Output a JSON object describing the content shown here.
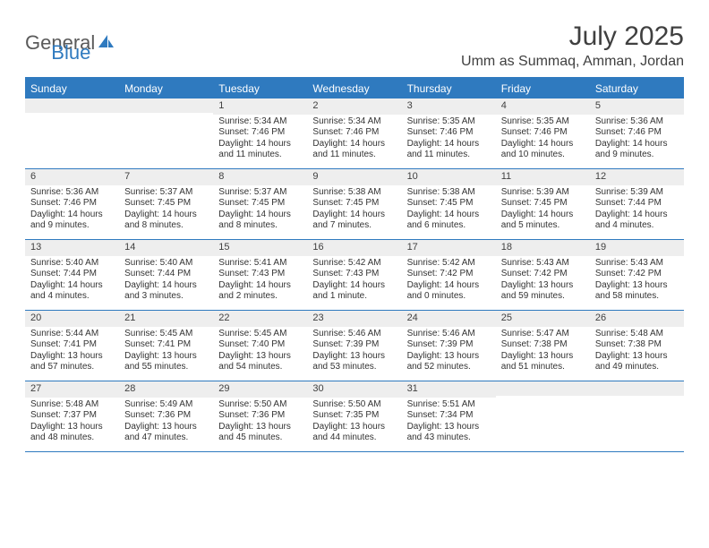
{
  "logo": {
    "general": "General",
    "blue": "Blue"
  },
  "title": "July 2025",
  "location": "Umm as Summaq, Amman, Jordan",
  "colors": {
    "accent": "#2f7abf",
    "head_text": "#ffffff",
    "daynum_bg": "#eeeeee",
    "body_text": "#333333",
    "title_text": "#404040"
  },
  "dayHeaders": [
    "Sunday",
    "Monday",
    "Tuesday",
    "Wednesday",
    "Thursday",
    "Friday",
    "Saturday"
  ],
  "weeks": [
    [
      {
        "n": "",
        "sr": "",
        "ss": "",
        "dl": ""
      },
      {
        "n": "",
        "sr": "",
        "ss": "",
        "dl": ""
      },
      {
        "n": "1",
        "sr": "Sunrise: 5:34 AM",
        "ss": "Sunset: 7:46 PM",
        "dl": "Daylight: 14 hours and 11 minutes."
      },
      {
        "n": "2",
        "sr": "Sunrise: 5:34 AM",
        "ss": "Sunset: 7:46 PM",
        "dl": "Daylight: 14 hours and 11 minutes."
      },
      {
        "n": "3",
        "sr": "Sunrise: 5:35 AM",
        "ss": "Sunset: 7:46 PM",
        "dl": "Daylight: 14 hours and 11 minutes."
      },
      {
        "n": "4",
        "sr": "Sunrise: 5:35 AM",
        "ss": "Sunset: 7:46 PM",
        "dl": "Daylight: 14 hours and 10 minutes."
      },
      {
        "n": "5",
        "sr": "Sunrise: 5:36 AM",
        "ss": "Sunset: 7:46 PM",
        "dl": "Daylight: 14 hours and 9 minutes."
      }
    ],
    [
      {
        "n": "6",
        "sr": "Sunrise: 5:36 AM",
        "ss": "Sunset: 7:46 PM",
        "dl": "Daylight: 14 hours and 9 minutes."
      },
      {
        "n": "7",
        "sr": "Sunrise: 5:37 AM",
        "ss": "Sunset: 7:45 PM",
        "dl": "Daylight: 14 hours and 8 minutes."
      },
      {
        "n": "8",
        "sr": "Sunrise: 5:37 AM",
        "ss": "Sunset: 7:45 PM",
        "dl": "Daylight: 14 hours and 8 minutes."
      },
      {
        "n": "9",
        "sr": "Sunrise: 5:38 AM",
        "ss": "Sunset: 7:45 PM",
        "dl": "Daylight: 14 hours and 7 minutes."
      },
      {
        "n": "10",
        "sr": "Sunrise: 5:38 AM",
        "ss": "Sunset: 7:45 PM",
        "dl": "Daylight: 14 hours and 6 minutes."
      },
      {
        "n": "11",
        "sr": "Sunrise: 5:39 AM",
        "ss": "Sunset: 7:45 PM",
        "dl": "Daylight: 14 hours and 5 minutes."
      },
      {
        "n": "12",
        "sr": "Sunrise: 5:39 AM",
        "ss": "Sunset: 7:44 PM",
        "dl": "Daylight: 14 hours and 4 minutes."
      }
    ],
    [
      {
        "n": "13",
        "sr": "Sunrise: 5:40 AM",
        "ss": "Sunset: 7:44 PM",
        "dl": "Daylight: 14 hours and 4 minutes."
      },
      {
        "n": "14",
        "sr": "Sunrise: 5:40 AM",
        "ss": "Sunset: 7:44 PM",
        "dl": "Daylight: 14 hours and 3 minutes."
      },
      {
        "n": "15",
        "sr": "Sunrise: 5:41 AM",
        "ss": "Sunset: 7:43 PM",
        "dl": "Daylight: 14 hours and 2 minutes."
      },
      {
        "n": "16",
        "sr": "Sunrise: 5:42 AM",
        "ss": "Sunset: 7:43 PM",
        "dl": "Daylight: 14 hours and 1 minute."
      },
      {
        "n": "17",
        "sr": "Sunrise: 5:42 AM",
        "ss": "Sunset: 7:42 PM",
        "dl": "Daylight: 14 hours and 0 minutes."
      },
      {
        "n": "18",
        "sr": "Sunrise: 5:43 AM",
        "ss": "Sunset: 7:42 PM",
        "dl": "Daylight: 13 hours and 59 minutes."
      },
      {
        "n": "19",
        "sr": "Sunrise: 5:43 AM",
        "ss": "Sunset: 7:42 PM",
        "dl": "Daylight: 13 hours and 58 minutes."
      }
    ],
    [
      {
        "n": "20",
        "sr": "Sunrise: 5:44 AM",
        "ss": "Sunset: 7:41 PM",
        "dl": "Daylight: 13 hours and 57 minutes."
      },
      {
        "n": "21",
        "sr": "Sunrise: 5:45 AM",
        "ss": "Sunset: 7:41 PM",
        "dl": "Daylight: 13 hours and 55 minutes."
      },
      {
        "n": "22",
        "sr": "Sunrise: 5:45 AM",
        "ss": "Sunset: 7:40 PM",
        "dl": "Daylight: 13 hours and 54 minutes."
      },
      {
        "n": "23",
        "sr": "Sunrise: 5:46 AM",
        "ss": "Sunset: 7:39 PM",
        "dl": "Daylight: 13 hours and 53 minutes."
      },
      {
        "n": "24",
        "sr": "Sunrise: 5:46 AM",
        "ss": "Sunset: 7:39 PM",
        "dl": "Daylight: 13 hours and 52 minutes."
      },
      {
        "n": "25",
        "sr": "Sunrise: 5:47 AM",
        "ss": "Sunset: 7:38 PM",
        "dl": "Daylight: 13 hours and 51 minutes."
      },
      {
        "n": "26",
        "sr": "Sunrise: 5:48 AM",
        "ss": "Sunset: 7:38 PM",
        "dl": "Daylight: 13 hours and 49 minutes."
      }
    ],
    [
      {
        "n": "27",
        "sr": "Sunrise: 5:48 AM",
        "ss": "Sunset: 7:37 PM",
        "dl": "Daylight: 13 hours and 48 minutes."
      },
      {
        "n": "28",
        "sr": "Sunrise: 5:49 AM",
        "ss": "Sunset: 7:36 PM",
        "dl": "Daylight: 13 hours and 47 minutes."
      },
      {
        "n": "29",
        "sr": "Sunrise: 5:50 AM",
        "ss": "Sunset: 7:36 PM",
        "dl": "Daylight: 13 hours and 45 minutes."
      },
      {
        "n": "30",
        "sr": "Sunrise: 5:50 AM",
        "ss": "Sunset: 7:35 PM",
        "dl": "Daylight: 13 hours and 44 minutes."
      },
      {
        "n": "31",
        "sr": "Sunrise: 5:51 AM",
        "ss": "Sunset: 7:34 PM",
        "dl": "Daylight: 13 hours and 43 minutes."
      },
      {
        "n": "",
        "sr": "",
        "ss": "",
        "dl": ""
      },
      {
        "n": "",
        "sr": "",
        "ss": "",
        "dl": ""
      }
    ]
  ]
}
